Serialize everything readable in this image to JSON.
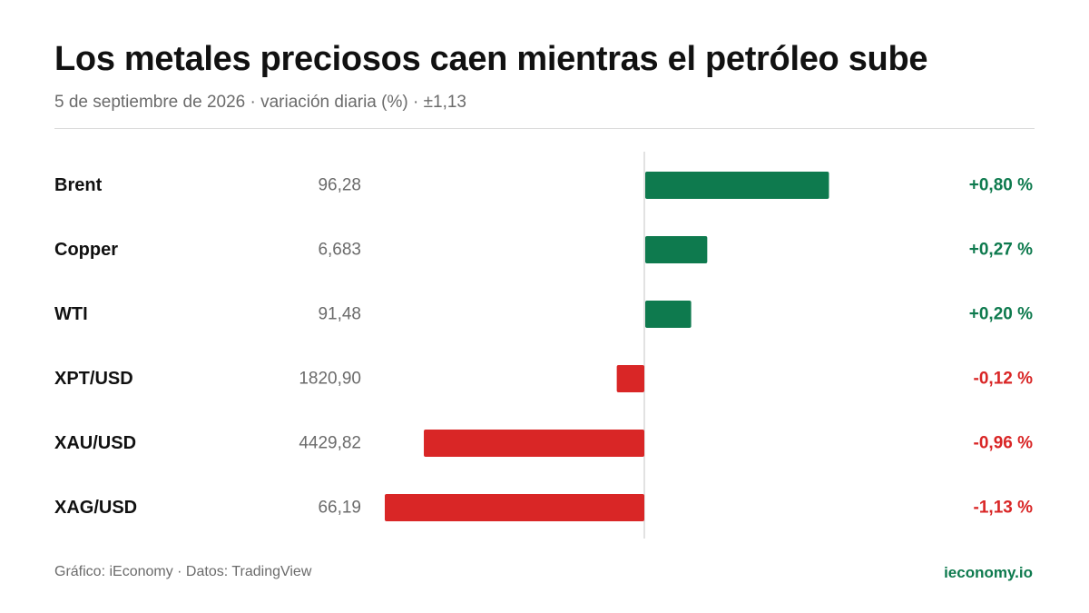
{
  "header": {
    "title": "Los metales preciosos caen mientras el petróleo sube",
    "subtitle": "5 de septiembre de 2026 · variación diaria (%) · ±1,13"
  },
  "footer": {
    "source": "Gráfico: iEconomy · Datos: TradingView",
    "brand": "ieconomy.io"
  },
  "colors": {
    "positive": "#0e7a4e",
    "negative": "#d92626",
    "brand": "#0e7a4e",
    "axis": "#d9d9d9"
  },
  "chart_data": {
    "type": "bar",
    "orientation": "horizontal",
    "categories": [
      "Brent",
      "Copper",
      "WTI",
      "XPT/USD",
      "XAU/USD",
      "XAG/USD"
    ],
    "prices": [
      "96,28",
      "6,683",
      "91,48",
      "1820,90",
      "4429,82",
      "66,19"
    ],
    "values": [
      0.8,
      0.27,
      0.2,
      -0.12,
      -0.96,
      -1.13
    ],
    "value_labels": [
      "+0,80 %",
      "+0,27 %",
      "+0,20 %",
      "-0,12 %",
      "-0,96 %",
      "-1,13 %"
    ],
    "xlim": [
      -1.13,
      1.13
    ],
    "grid": false
  }
}
